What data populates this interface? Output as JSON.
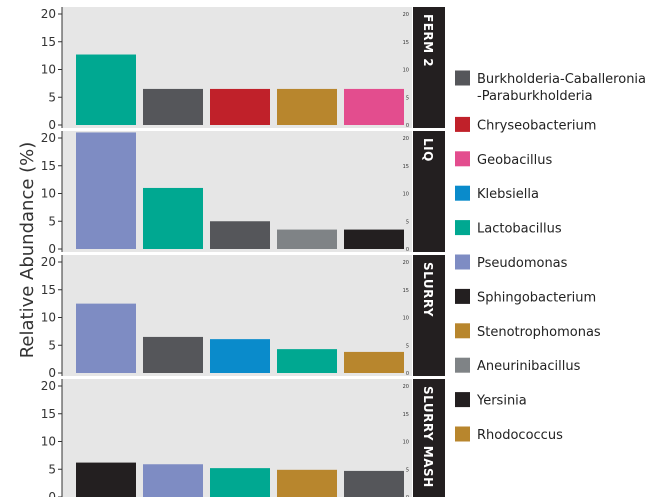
{
  "chart_data": {
    "type": "bar",
    "ylabel": "Relative Abundance (%)",
    "ylim": [
      0,
      20
    ],
    "yticks": [
      0,
      5,
      10,
      15,
      20
    ],
    "grid": false,
    "legend_placement": "right",
    "facets": [
      {
        "label": "FERM 2",
        "bars": [
          {
            "taxon": "Lactobacillus",
            "value": 12.7
          },
          {
            "taxon": "Burkholderia-Caballeronia-Paraburkholderia",
            "value": 6.5
          },
          {
            "taxon": "Chryseobacterium",
            "value": 6.5
          },
          {
            "taxon": "Stenotrophomonas",
            "value": 6.5
          },
          {
            "taxon": "Geobacillus",
            "value": 6.5
          }
        ]
      },
      {
        "label": "LIQ",
        "bars": [
          {
            "taxon": "Pseudomonas",
            "value": 21.0
          },
          {
            "taxon": "Lactobacillus",
            "value": 11.0
          },
          {
            "taxon": "Burkholderia-Caballeronia-Paraburkholderia",
            "value": 5.0
          },
          {
            "taxon": "Aneurinibacillus",
            "value": 3.5
          },
          {
            "taxon": "Sphingobacterium",
            "value": 3.5
          }
        ]
      },
      {
        "label": "SLURRY",
        "bars": [
          {
            "taxon": "Pseudomonas",
            "value": 12.5
          },
          {
            "taxon": "Burkholderia-Caballeronia-Paraburkholderia",
            "value": 6.5
          },
          {
            "taxon": "Klebsiella",
            "value": 6.1
          },
          {
            "taxon": "Lactobacillus",
            "value": 4.3
          },
          {
            "taxon": "Stenotrophomonas",
            "value": 3.8
          }
        ]
      },
      {
        "label": "SLURRY MASH",
        "bars": [
          {
            "taxon": "Sphingobacterium",
            "value": 6.2
          },
          {
            "taxon": "Pseudomonas",
            "value": 5.9
          },
          {
            "taxon": "Lactobacillus",
            "value": 5.2
          },
          {
            "taxon": "Stenotrophomonas",
            "value": 4.9
          },
          {
            "taxon": "Burkholderia-Caballeronia-Paraburkholderia",
            "value": 4.7
          }
        ]
      }
    ],
    "legend": [
      {
        "label": "Burkholderia-Caballeronia",
        "label2": "-Paraburkholderia",
        "key": "Burkholderia-Caballeronia-Paraburkholderia",
        "color": "#55565a"
      },
      {
        "label": "Chryseobacterium",
        "key": "Chryseobacterium",
        "color": "#c0212a"
      },
      {
        "label": "Geobacillus",
        "key": "Geobacillus",
        "color": "#e34d8e"
      },
      {
        "label": "Klebsiella",
        "key": "Klebsiella",
        "color": "#0a8bcb"
      },
      {
        "label": "Lactobacillus",
        "key": "Lactobacillus",
        "color": "#00a891"
      },
      {
        "label": "Pseudomonas",
        "key": "Pseudomonas",
        "color": "#7e8cc3"
      },
      {
        "label": "Sphingobacterium",
        "key": "Sphingobacterium",
        "color": "#231f20"
      },
      {
        "label": "Stenotrophomonas",
        "key": "Stenotrophomonas",
        "color": "#b8862d"
      },
      {
        "label": "Aneurinibacillus",
        "key": "Aneurinibacillus",
        "color": "#7f8386"
      },
      {
        "label": "Yersinia",
        "key": "Yersinia",
        "color": "#231f20"
      },
      {
        "label": "Rhodococcus",
        "key": "Rhodococcus",
        "color": "#b8862d"
      }
    ],
    "colors": {
      "panel_background": "#e6e6e6",
      "strip_background": "#231f20"
    }
  }
}
